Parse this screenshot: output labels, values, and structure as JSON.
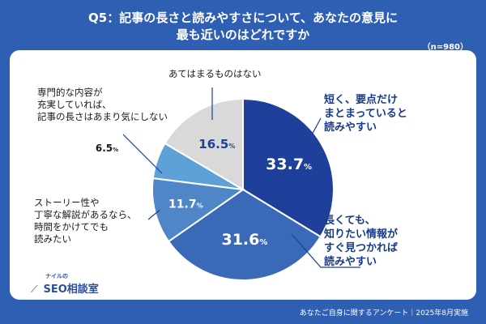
{
  "header": {
    "title_line1": "Q5：記事の長さと読みやすさについて、あなたの意見に",
    "title_line2": "最も近いのはどれですか",
    "sample_size": "（n=980）"
  },
  "footer": {
    "source": "あなたご自身に関するアンケート｜2025年8月実施"
  },
  "logo": {
    "small_text": "ナイルの",
    "main_text": "SEO相談室",
    "icon": "chart-arrow-icon"
  },
  "colors": {
    "background": "#2f5fb3",
    "card": "#ffffff",
    "slice1": "#1e3f9a",
    "slice2": "#3a69b8",
    "slice3": "#4f86c8",
    "slice4": "#5ea1d6",
    "slice5": "#d9d9d9"
  },
  "chart_data": {
    "type": "pie",
    "unit": "%",
    "slices": [
      {
        "label": "短く、要点だけまとまっていると読みやすい",
        "value": 33.7,
        "display": "33.7",
        "color": "#1e3f9a"
      },
      {
        "label": "長くても、知りたい情報がすぐ見つかれば読みやすい",
        "value": 31.6,
        "display": "31.6",
        "color": "#3a69b8"
      },
      {
        "label": "ストーリー性や丁寧な解説があるなら、時間をかけてでも読みたい",
        "value": 11.7,
        "display": "11.7",
        "color": "#4f86c8"
      },
      {
        "label": "専門的な内容が充実していれば、記事の長さはあまり気にしない",
        "value": 6.5,
        "display": "6.5",
        "color": "#5ea1d6"
      },
      {
        "label": "あてはまるものはない",
        "value": 16.5,
        "display": "16.5",
        "color": "#d9d9d9"
      }
    ],
    "labels_display": {
      "s1": [
        "短く、要点だけ",
        "まとまっていると",
        "読みやすい"
      ],
      "s2": [
        "長くても、",
        "知りたい情報が",
        "すぐ見つかれば",
        "読みやすい"
      ],
      "s3": [
        "ストーリー性や",
        "丁寧な解説があるなら、",
        "時間をかけてでも",
        "読みたい"
      ],
      "s4": [
        "専門的な内容が",
        "充実していれば、",
        "記事の長さはあまり気にしない"
      ],
      "s5": [
        "あてはまるものはない"
      ]
    }
  }
}
